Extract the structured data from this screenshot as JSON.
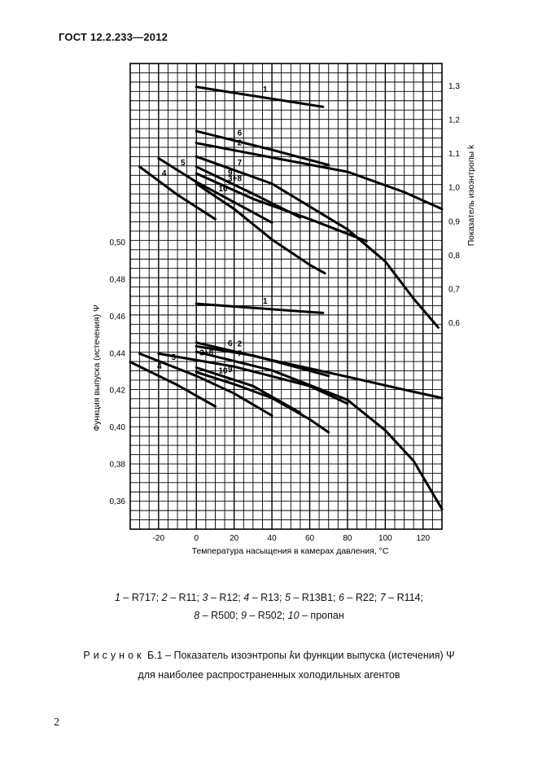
{
  "header": {
    "doc_id": "ГОСТ 12.2.233—2012"
  },
  "chart_data": {
    "type": "line",
    "xlabel": "Температура насыщения в камерах давления, °С",
    "ylabel_left": "Функция выпуска (истечения) Ψ",
    "ylabel_right": "Показатель изоэнтропы k",
    "xlim": [
      -35,
      130
    ],
    "x_ticks": [
      -20,
      0,
      20,
      40,
      60,
      80,
      100,
      120
    ],
    "psi_lim": [
      0.35,
      0.53
    ],
    "psi_ticks": [
      "0,50",
      "0,48",
      "0,46",
      "0,44",
      "0,42",
      "0,40",
      "0,38",
      "0,36"
    ],
    "k_ticks": [
      "1,3",
      "1,2",
      "1,1",
      "1,0",
      "0,9",
      "0,8",
      "0,7",
      "0,6"
    ],
    "grid": true,
    "k_series": [
      {
        "label": "1",
        "x": [
          0,
          67
        ],
        "y": [
          1.296,
          1.237
        ]
      },
      {
        "label": "2",
        "x": [
          0,
          40,
          80,
          110,
          130
        ],
        "y": [
          1.13,
          1.087,
          1.045,
          0.985,
          0.935
        ]
      },
      {
        "label": "3+8",
        "x": [
          0,
          30,
          60,
          90
        ],
        "y": [
          1.04,
          0.965,
          0.905,
          0.84
        ]
      },
      {
        "label": "4",
        "x": [
          -30,
          -10,
          10
        ],
        "y": [
          1.06,
          0.977,
          0.905
        ]
      },
      {
        "label": "5",
        "x": [
          -20,
          0,
          20,
          40
        ],
        "y": [
          1.085,
          1.015,
          0.955,
          0.895
        ]
      },
      {
        "label": "6",
        "x": [
          0,
          40,
          70
        ],
        "y": [
          1.165,
          1.11,
          1.065
        ]
      },
      {
        "label": "7",
        "x": [
          0,
          40,
          80,
          100,
          115,
          128
        ],
        "y": [
          1.09,
          1.01,
          0.875,
          0.78,
          0.67,
          0.585
        ]
      },
      {
        "label": "9",
        "x": [
          0,
          30,
          55
        ],
        "y": [
          1.06,
          0.98,
          0.91
        ]
      },
      {
        "label": "10",
        "x": [
          0,
          20,
          40,
          60,
          68
        ],
        "y": [
          1.01,
          0.935,
          0.845,
          0.77,
          0.745
        ]
      }
    ],
    "psi_series": [
      {
        "label": "1",
        "x": [
          0,
          67
        ],
        "y": [
          0.4665,
          0.4615
        ]
      },
      {
        "label": "2",
        "x": [
          0,
          40,
          80,
          110,
          130
        ],
        "y": [
          0.4455,
          0.436,
          0.427,
          0.42,
          0.4155
        ]
      },
      {
        "label": "3+8",
        "x": [
          -20,
          20,
          60,
          80
        ],
        "y": [
          0.4395,
          0.4325,
          0.422,
          0.4125
        ]
      },
      {
        "label": "4",
        "x": [
          -35,
          -10,
          10
        ],
        "y": [
          0.435,
          0.4225,
          0.411
        ]
      },
      {
        "label": "5",
        "x": [
          -30,
          0,
          20,
          40
        ],
        "y": [
          0.4395,
          0.4275,
          0.418,
          0.406
        ]
      },
      {
        "label": "6",
        "x": [
          0,
          30,
          70
        ],
        "y": [
          0.4435,
          0.4385,
          0.4275
        ]
      },
      {
        "label": "7",
        "x": [
          0,
          40,
          80,
          100,
          115,
          130
        ],
        "y": [
          0.4405,
          0.4305,
          0.4145,
          0.398,
          0.3815,
          0.3555
        ]
      },
      {
        "label": "9",
        "x": [
          0,
          30,
          55
        ],
        "y": [
          0.432,
          0.422,
          0.4075
        ]
      },
      {
        "label": "10",
        "x": [
          0,
          20,
          40,
          60,
          70
        ],
        "y": [
          0.4295,
          0.423,
          0.4155,
          0.404,
          0.397
        ]
      }
    ]
  },
  "legend": {
    "line1": [
      {
        "num": "1",
        "text": " – R717; "
      },
      {
        "num": "2",
        "text": " – R11; "
      },
      {
        "num": "3",
        "text": " – R12; "
      },
      {
        "num": "4",
        "text": " – R13; "
      },
      {
        "num": "5",
        "text": " – R13B1; "
      },
      {
        "num": "6",
        "text": " – R22; "
      },
      {
        "num": "7",
        "text": " – R114;"
      }
    ],
    "line2": [
      {
        "num": "8",
        "text": " – R500; "
      },
      {
        "num": "9",
        "text": " – R502; "
      },
      {
        "num": "10",
        "text": " – пропан"
      }
    ]
  },
  "caption": {
    "spaced": "Рисунок",
    "number_text": " Б.1 – Показатель изоэнтропы ",
    "k_symbol": "k",
    "middle": "и функции выпуска (истечения) Ψ",
    "line2": "для наиболее распространенных холодильных агентов"
  },
  "footer": {
    "page_number": "2"
  }
}
